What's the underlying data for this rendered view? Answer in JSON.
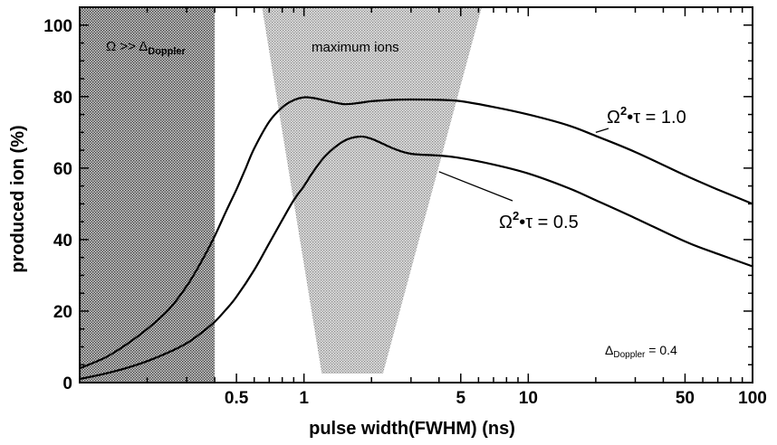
{
  "chart_data": {
    "type": "line",
    "title": "",
    "xlabel": "pulse width(FWHM) (ns)",
    "ylabel": "produced ion (%)",
    "x_scale": "log",
    "xlim": [
      0.1,
      100
    ],
    "ylim": [
      0,
      105
    ],
    "x_ticks": [
      {
        "value": 0.5,
        "label": "0.5"
      },
      {
        "value": 1,
        "label": "1"
      },
      {
        "value": 5,
        "label": "5"
      },
      {
        "value": 10,
        "label": "10"
      },
      {
        "value": 50,
        "label": "50"
      },
      {
        "value": 100,
        "label": "100"
      }
    ],
    "y_ticks": [
      {
        "value": 0,
        "label": "0"
      },
      {
        "value": 20,
        "label": "20"
      },
      {
        "value": 40,
        "label": "40"
      },
      {
        "value": 60,
        "label": "60"
      },
      {
        "value": 80,
        "label": "80"
      },
      {
        "value": 100,
        "label": "100"
      }
    ],
    "grid": false,
    "series": [
      {
        "name": "Ω²·τ = 1.0",
        "x": [
          0.1,
          0.13,
          0.16,
          0.2,
          0.25,
          0.3,
          0.35,
          0.4,
          0.45,
          0.5,
          0.55,
          0.6,
          0.7,
          0.8,
          0.9,
          1.0,
          1.1,
          1.25,
          1.5,
          1.75,
          2.0,
          2.5,
          3.0,
          4.0,
          5.0,
          7.0,
          10.0,
          15.0,
          20.0,
          30.0,
          50.0,
          70.0,
          100.0
        ],
        "y": [
          4,
          7,
          10.5,
          15,
          20.5,
          27,
          34,
          41,
          48,
          54,
          60,
          65.5,
          73,
          77,
          79,
          79.8,
          79.6,
          78.9,
          77.9,
          78.2,
          78.7,
          79.1,
          79.2,
          79.1,
          78.7,
          77.1,
          75,
          72,
          69,
          64.5,
          58,
          54,
          50
        ]
      },
      {
        "name": "Ω²·τ = 0.5",
        "x": [
          0.1,
          0.13,
          0.16,
          0.2,
          0.25,
          0.3,
          0.35,
          0.4,
          0.45,
          0.5,
          0.6,
          0.7,
          0.8,
          0.9,
          1.0,
          1.1,
          1.25,
          1.5,
          1.75,
          2.0,
          2.5,
          3.0,
          4.0,
          5.0,
          7.0,
          10.0,
          15.0,
          20.0,
          30.0,
          50.0,
          70.0,
          100.0
        ],
        "y": [
          1,
          2.5,
          4,
          6,
          8.5,
          11,
          14,
          17,
          20.5,
          24,
          31.5,
          39,
          45.5,
          51,
          55,
          59,
          63.5,
          67.5,
          68.8,
          68.2,
          65.5,
          64,
          63.5,
          62.8,
          61,
          58.5,
          54.5,
          51,
          46,
          39.5,
          36,
          32.5
        ]
      }
    ],
    "shaded_regions": [
      {
        "label": "Ω >> ΔDoppler",
        "x_from": 0.1,
        "x_to": 0.4,
        "y_from": 0,
        "y_to": 105,
        "shade": "#9a9a9a"
      },
      {
        "label": "maximum ions",
        "top_x_from": 0.65,
        "top_x_to": 6.2,
        "bottom_x_from": 1.2,
        "bottom_x_to": 2.25,
        "shade": "#c4c4c4"
      }
    ],
    "annotations": {
      "left_region": {
        "main": "Ω >> Δ",
        "sub": "Doppler"
      },
      "center_region": "maximum ions",
      "curve_high": {
        "omega": "Ω",
        "sup": "2",
        "rest": "•τ = 1.0",
        "pointer_x": 20,
        "pointer_y": 70
      },
      "curve_low": {
        "omega": "Ω",
        "sup": "2",
        "rest": "•τ = 0.5",
        "pointer_x": 4.0,
        "pointer_y": 59
      },
      "doppler": {
        "main": "Δ",
        "sub": "Doppler",
        "rest": " = 0.4"
      }
    }
  }
}
